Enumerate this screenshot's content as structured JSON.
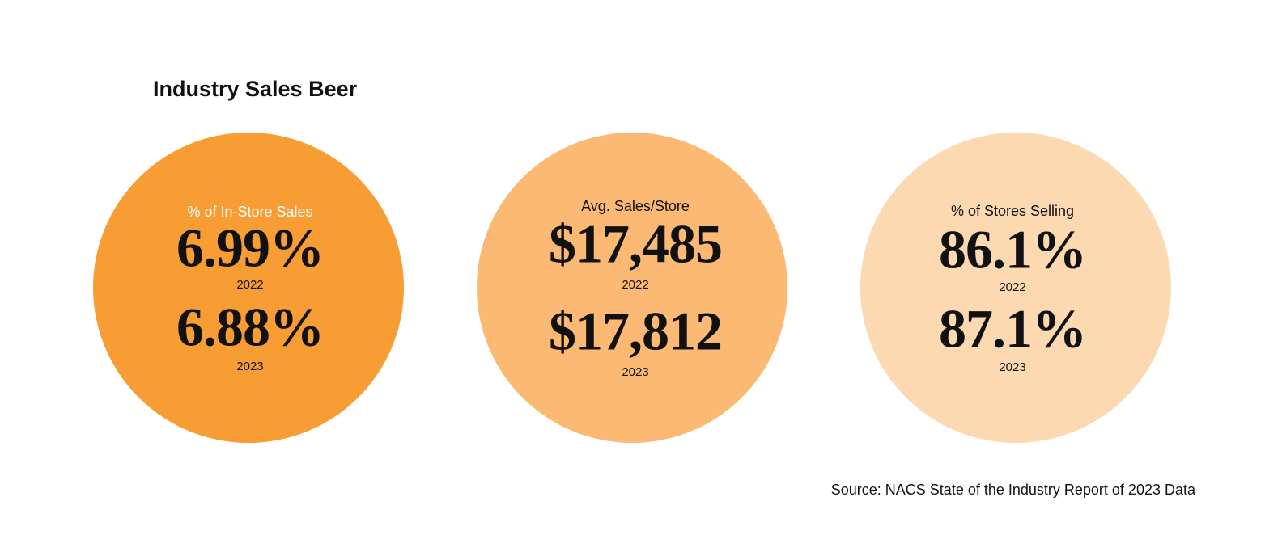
{
  "header": {
    "title": "Industry Sales Beer"
  },
  "circles": [
    {
      "label": "% of In-Store Sales",
      "stats": [
        {
          "value": "6.99%",
          "year": "2022"
        },
        {
          "value": "6.88%",
          "year": "2023"
        }
      ]
    },
    {
      "label": "Avg. Sales/Store",
      "stats": [
        {
          "value": "$17,485",
          "year": "2022"
        },
        {
          "value": "$17,812",
          "year": "2023"
        }
      ]
    },
    {
      "label": "% of Stores Selling",
      "stats": [
        {
          "value": "86.1%",
          "year": "2022"
        },
        {
          "value": "87.1%",
          "year": "2023"
        }
      ]
    }
  ],
  "footer": {
    "source": "Source: NACS State of the Industry Report of 2023 Data"
  }
}
